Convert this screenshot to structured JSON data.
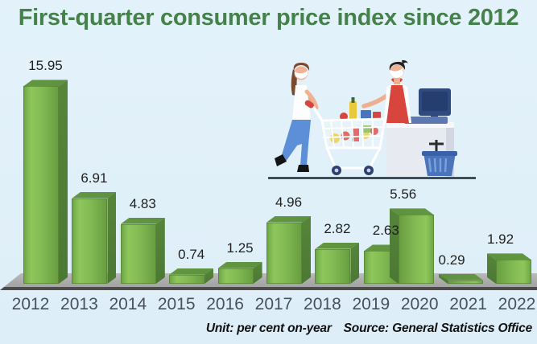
{
  "title": "First-quarter consumer price index since 2012",
  "footer": {
    "unit": "Unit: per cent on-year",
    "source": "Source: General Statistics Office"
  },
  "chart_data": {
    "type": "bar",
    "title": "First-quarter consumer price index since 2012",
    "categories": [
      "2012",
      "2013",
      "2014",
      "2015",
      "2016",
      "2017",
      "2018",
      "2019",
      "2020",
      "2021",
      "2022"
    ],
    "values": [
      15.95,
      6.91,
      4.83,
      0.74,
      1.25,
      4.96,
      2.82,
      2.63,
      5.56,
      0.29,
      1.92
    ],
    "value_labels": [
      "15.95",
      "6.91",
      "4.83",
      "0.74",
      "1.25",
      "4.96",
      "2.82",
      "2.63",
      "5.56",
      "0.29",
      "1.92"
    ],
    "unit": "per cent on-year",
    "source": "General Statistics Office",
    "xlabel": "",
    "ylabel": "",
    "ylim": [
      0,
      16
    ],
    "grid": false,
    "legend": false,
    "style": "3d-green-bars",
    "bar_color": "#7FB851",
    "bar_side_color": "#4C7A33",
    "bar_top_color": "#5E9340"
  },
  "colors": {
    "background": "#E0EFF9",
    "title_green": "#45814A",
    "floor_gray": "#ADADAD",
    "floor_edge": "#4C4C4C",
    "year_text": "#48515B",
    "value_text": "#1F1F1F"
  },
  "illustration": {
    "name": "masked shopper pushing grocery cart toward masked cashier with register and basket"
  }
}
